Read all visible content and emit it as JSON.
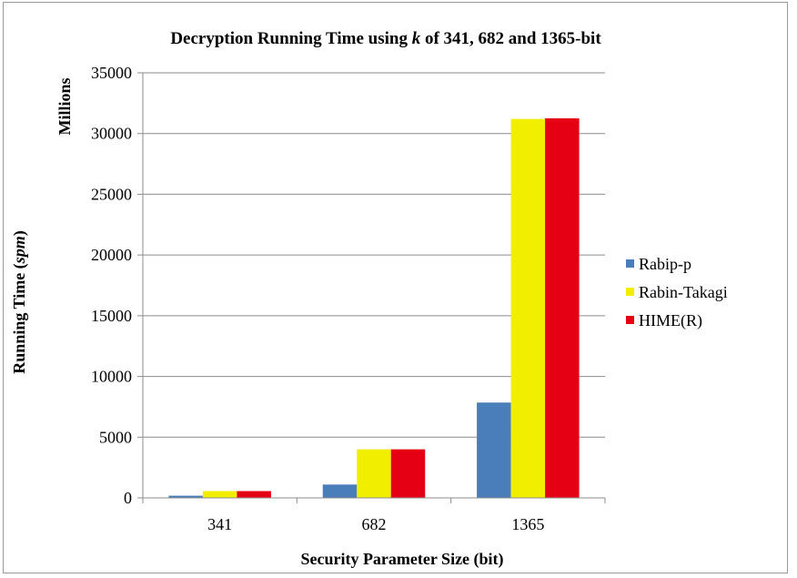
{
  "chart_data": {
    "type": "bar",
    "title_parts": [
      "Decryption Running Time using ",
      "k",
      " of 341, 682 and 1365-bit"
    ],
    "xlabel": "Security Parameter Size (bit)",
    "ylabel_parts": [
      "Running Time (",
      "spm",
      ")"
    ],
    "units_label": "Millions",
    "categories": [
      "341",
      "682",
      "1365"
    ],
    "ylim": [
      0,
      35000
    ],
    "yticks": [
      "0",
      "5000",
      "10000",
      "15000",
      "20000",
      "25000",
      "30000",
      "35000"
    ],
    "grid": true,
    "legend_position": "right",
    "series": [
      {
        "name": "Rabip-p",
        "color": "#4a7ebb",
        "values": [
          180,
          1100,
          7850
        ]
      },
      {
        "name": "Rabin-Takagi",
        "color": "#f2ee00",
        "values": [
          560,
          4000,
          31200
        ]
      },
      {
        "name": "HIME(R)",
        "color": "#e60013",
        "values": [
          560,
          4000,
          31250
        ]
      }
    ]
  }
}
